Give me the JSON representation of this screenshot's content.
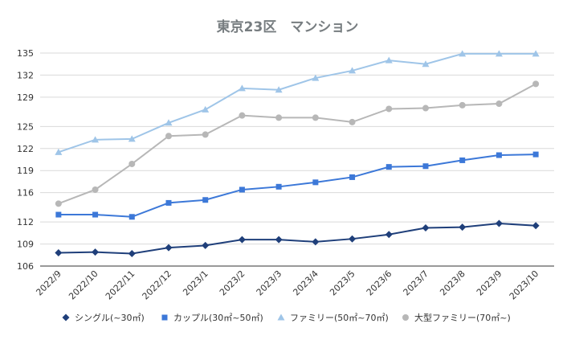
{
  "chart_data": {
    "type": "line",
    "title": "東京23区　マンション",
    "x": [
      "2022/9",
      "2022/10",
      "2022/11",
      "2022/12",
      "2023/1",
      "2023/2",
      "2023/3",
      "2023/4",
      "2023/5",
      "2023/6",
      "2023/7",
      "2023/8",
      "2023/9",
      "2023/10"
    ],
    "ylim": [
      106,
      135
    ],
    "yticks": [
      106,
      109,
      112,
      116,
      119,
      122,
      125,
      129,
      132,
      135
    ],
    "grid": true,
    "legend_position": "bottom",
    "series": [
      {
        "name": "シングル(~30㎡)",
        "color": "#1f3f7a",
        "marker": "diamond",
        "values": [
          107.8,
          107.9,
          107.7,
          108.5,
          108.8,
          109.6,
          109.6,
          109.3,
          109.7,
          110.3,
          111.2,
          111.3,
          111.8,
          111.5
        ]
      },
      {
        "name": "カップル(30㎡~50㎡)",
        "color": "#3c78d8",
        "marker": "square",
        "values": [
          113.0,
          113.0,
          112.7,
          114.6,
          115.0,
          116.4,
          116.8,
          117.4,
          118.1,
          119.5,
          119.6,
          120.4,
          121.1,
          121.2
        ]
      },
      {
        "name": "ファミリー(50㎡~70㎡)",
        "color": "#9fc5e8",
        "marker": "triangle",
        "values": [
          121.5,
          123.2,
          123.3,
          125.5,
          127.3,
          130.2,
          130.0,
          131.6,
          132.6,
          134.0,
          133.5,
          134.9,
          134.9,
          134.9
        ]
      },
      {
        "name": "大型ファミリー(70㎡~)",
        "color": "#b7b7b7",
        "marker": "circle",
        "values": [
          114.5,
          116.4,
          119.9,
          123.7,
          123.9,
          126.5,
          126.2,
          126.2,
          125.6,
          127.4,
          127.5,
          127.9,
          128.1,
          130.8
        ]
      }
    ]
  }
}
